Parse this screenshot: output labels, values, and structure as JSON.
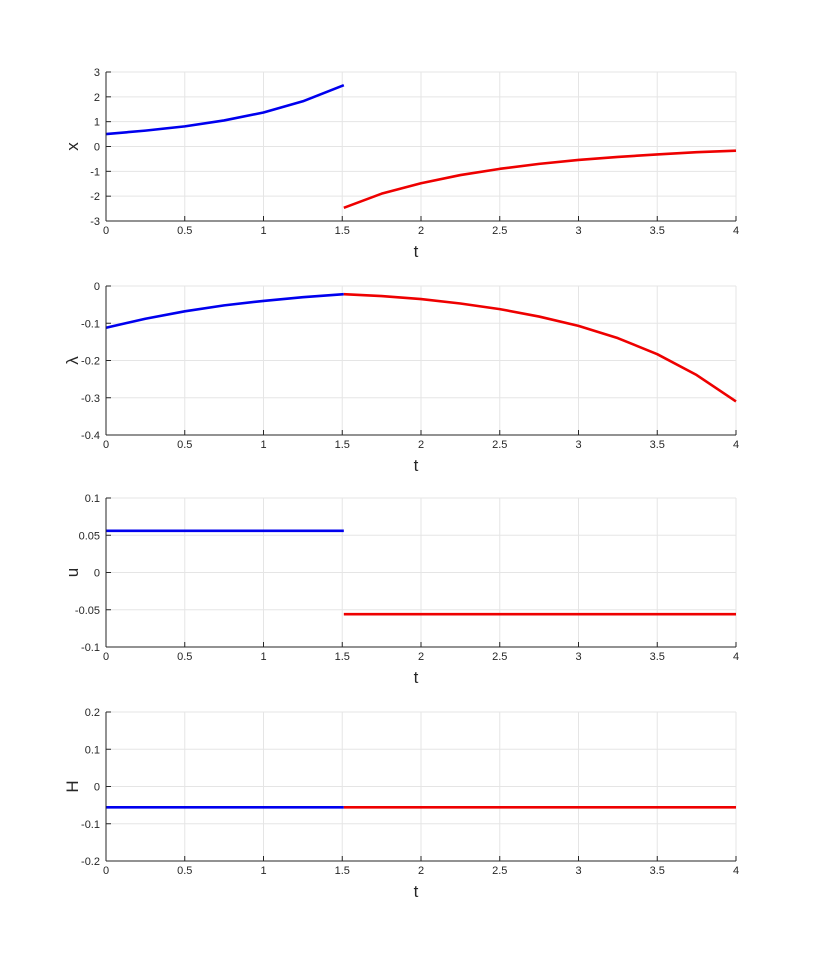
{
  "chart_data": [
    {
      "type": "line",
      "xlabel": "t",
      "ylabel": "x",
      "xlim": [
        0,
        4
      ],
      "ylim": [
        -3,
        3
      ],
      "xticks": [
        "0",
        "0.5",
        "1",
        "1.5",
        "2",
        "2.5",
        "3",
        "3.5",
        "4"
      ],
      "yticks": [
        "-3",
        "-2",
        "-1",
        "0",
        "1",
        "2",
        "3"
      ],
      "grid": true,
      "series": [
        {
          "color": "#0000ee",
          "x": [
            0,
            0.25,
            0.5,
            0.75,
            1.0,
            1.25,
            1.51
          ],
          "y": [
            0.5,
            0.64,
            0.81,
            1.05,
            1.37,
            1.82,
            2.47
          ]
        },
        {
          "color": "#ee0000",
          "x": [
            1.51,
            1.75,
            2.0,
            2.25,
            2.5,
            2.75,
            3.0,
            3.25,
            3.5,
            3.75,
            4.0
          ],
          "y": [
            -2.47,
            -1.9,
            -1.48,
            -1.15,
            -0.9,
            -0.7,
            -0.54,
            -0.42,
            -0.32,
            -0.23,
            -0.17
          ]
        }
      ]
    },
    {
      "type": "line",
      "xlabel": "t",
      "ylabel": "λ",
      "xlim": [
        0,
        4
      ],
      "ylim": [
        -0.4,
        0
      ],
      "xticks": [
        "0",
        "0.5",
        "1",
        "1.5",
        "2",
        "2.5",
        "3",
        "3.5",
        "4"
      ],
      "yticks": [
        "-0.4",
        "-0.3",
        "-0.2",
        "-0.1",
        "0"
      ],
      "grid": true,
      "series": [
        {
          "color": "#0000ee",
          "x": [
            0,
            0.25,
            0.5,
            0.75,
            1.0,
            1.25,
            1.51
          ],
          "y": [
            -0.112,
            -0.088,
            -0.068,
            -0.052,
            -0.04,
            -0.03,
            -0.022
          ]
        },
        {
          "color": "#ee0000",
          "x": [
            1.51,
            1.75,
            2.0,
            2.25,
            2.5,
            2.75,
            3.0,
            3.25,
            3.5,
            3.75,
            4.0
          ],
          "y": [
            -0.022,
            -0.027,
            -0.035,
            -0.047,
            -0.062,
            -0.082,
            -0.107,
            -0.14,
            -0.183,
            -0.239,
            -0.31
          ]
        }
      ]
    },
    {
      "type": "line",
      "xlabel": "t",
      "ylabel": "u",
      "xlim": [
        0,
        4
      ],
      "ylim": [
        -0.1,
        0.1
      ],
      "xticks": [
        "0",
        "0.5",
        "1",
        "1.5",
        "2",
        "2.5",
        "3",
        "3.5",
        "4"
      ],
      "yticks": [
        "-0.1",
        "-0.05",
        "0",
        "0.05",
        "0.1"
      ],
      "grid": true,
      "series": [
        {
          "color": "#0000ee",
          "x": [
            0,
            1.51
          ],
          "y": [
            0.056,
            0.056
          ]
        },
        {
          "color": "#ee0000",
          "x": [
            1.51,
            4.0
          ],
          "y": [
            -0.056,
            -0.056
          ]
        }
      ]
    },
    {
      "type": "line",
      "xlabel": "t",
      "ylabel": "H",
      "xlim": [
        0,
        4
      ],
      "ylim": [
        -0.2,
        0.2
      ],
      "xticks": [
        "0",
        "0.5",
        "1",
        "1.5",
        "2",
        "2.5",
        "3",
        "3.5",
        "4"
      ],
      "yticks": [
        "-0.2",
        "-0.1",
        "0",
        "0.1",
        "0.2"
      ],
      "grid": true,
      "series": [
        {
          "color": "#0000ee",
          "x": [
            0,
            1.51
          ],
          "y": [
            -0.056,
            -0.056
          ]
        },
        {
          "color": "#ee0000",
          "x": [
            1.51,
            4.0
          ],
          "y": [
            -0.056,
            -0.056
          ]
        }
      ]
    }
  ]
}
